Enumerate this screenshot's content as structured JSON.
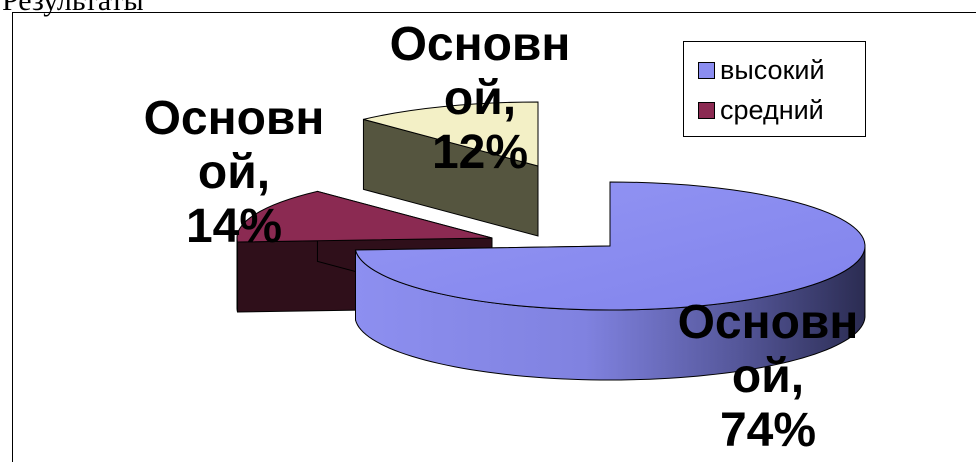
{
  "top_text": "Результаты",
  "colors": {
    "vysokiy": "#8b8df0",
    "sredniy": "#8b2a52",
    "third": "#f3f0c6"
  },
  "chart_data": {
    "type": "pie",
    "three_d": true,
    "exploded": true,
    "slices": [
      {
        "label": "Основной, 74%",
        "label_lines": [
          "Основн",
          "ой,",
          "74%"
        ],
        "value": 74,
        "color": "#8b8df0",
        "series": "высокий"
      },
      {
        "label": "Основной, 14%",
        "label_lines": [
          "Основн",
          "ой,",
          "14%"
        ],
        "value": 14,
        "color": "#8b2a52",
        "series": "средний"
      },
      {
        "label": "Основной, 12%",
        "label_lines": [
          "Основн",
          "ой,",
          "12%"
        ],
        "value": 12,
        "color": "#f3f0c6",
        "series": ""
      }
    ],
    "legend": {
      "placement": "top-right",
      "items": [
        {
          "label": "высокий",
          "color": "#8b8df0"
        },
        {
          "label": "средний",
          "color": "#8b2a52"
        }
      ]
    }
  }
}
